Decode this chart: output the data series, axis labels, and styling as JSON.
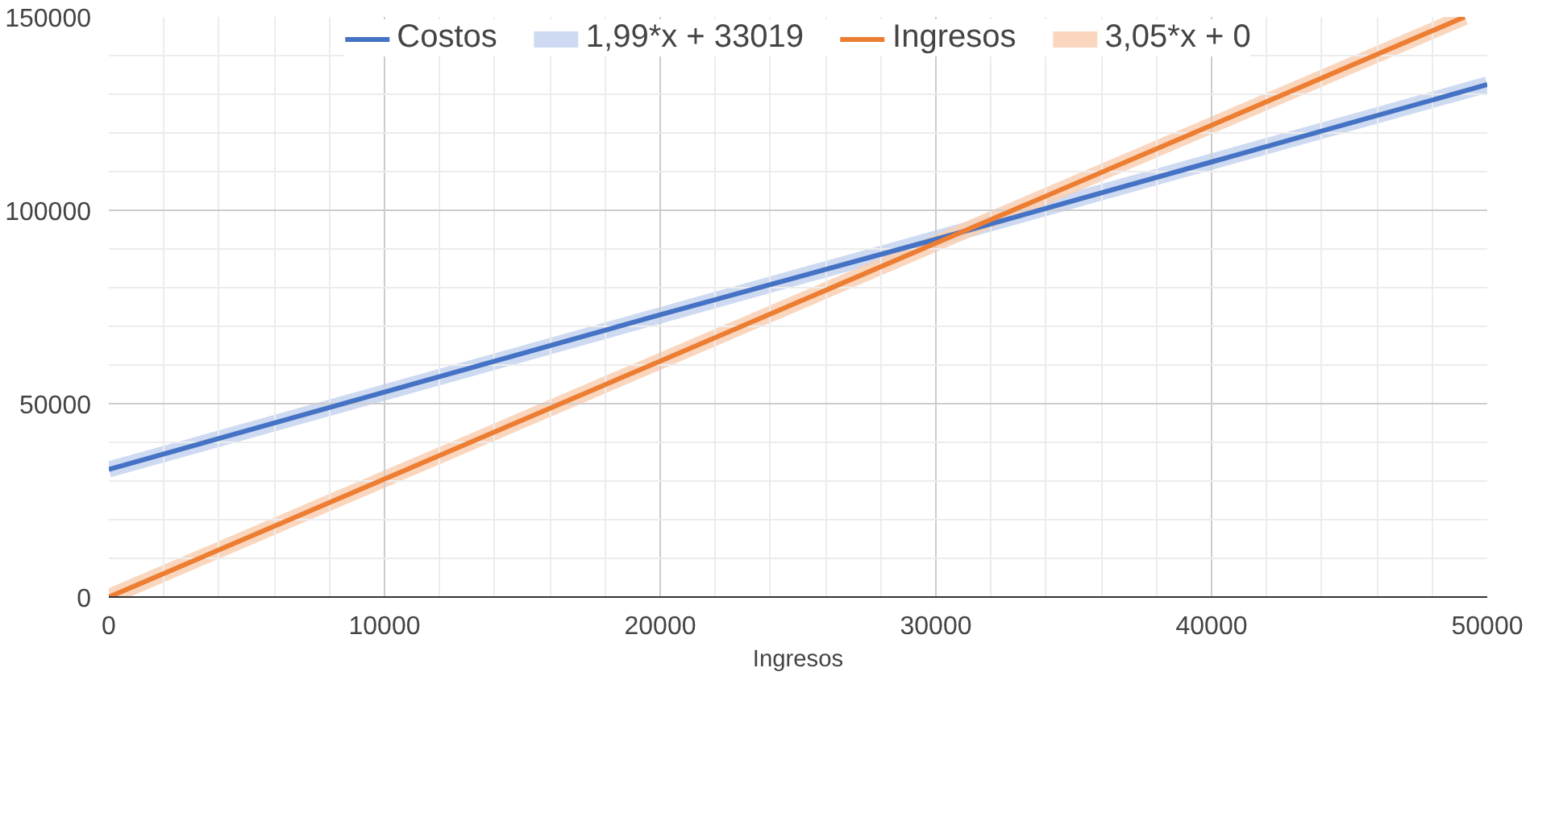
{
  "chart_data": {
    "type": "line",
    "xlabel": "Ingresos",
    "xlim": [
      0,
      50000
    ],
    "ylim": [
      0,
      150000
    ],
    "xticks": [
      0,
      10000,
      20000,
      30000,
      40000,
      50000
    ],
    "yticks": [
      0,
      50000,
      100000,
      150000
    ],
    "grid": true,
    "legend": "top",
    "marker": "none",
    "line_style": "solid",
    "series": [
      {
        "name": "Costos",
        "color": "#4472c4",
        "x": [
          0,
          10000,
          20000,
          30000,
          40000,
          50000
        ],
        "values": [
          33000,
          53000,
          73000,
          92500,
          112500,
          132500
        ]
      },
      {
        "name": "1,99*x + 33019",
        "type": "line",
        "color": "#c5d3ef",
        "x": [
          0,
          50000
        ],
        "values": [
          33000,
          132500
        ]
      },
      {
        "name": "Ingresos",
        "color": "#ed7d31",
        "x": [
          0,
          10000,
          20000,
          30000,
          40000,
          49180
        ],
        "values": [
          0,
          30500,
          61000,
          91500,
          122000,
          150000
        ]
      },
      {
        "name": "3,05*x + 0",
        "type": "line",
        "color": "#f9cfb3",
        "x": [
          0,
          49180
        ],
        "values": [
          0,
          150000
        ]
      }
    ]
  }
}
